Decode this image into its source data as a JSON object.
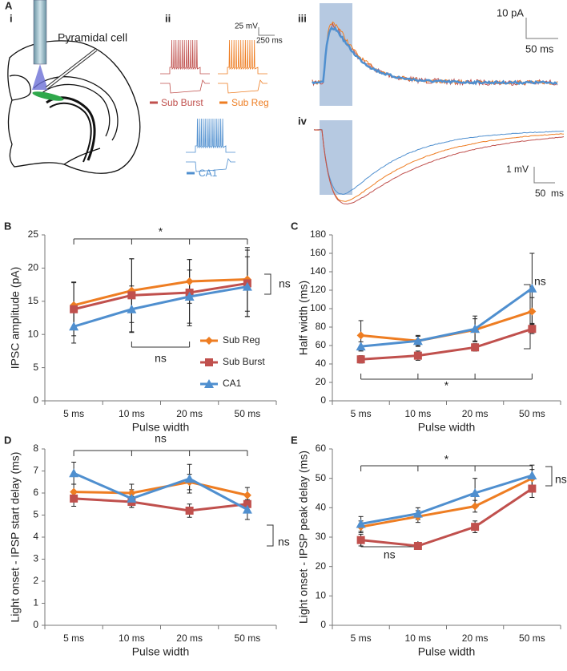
{
  "panel_a": {
    "label": "A",
    "sub_labels": [
      "i",
      "ii",
      "iii",
      "iv"
    ],
    "cell_label": "Pyramidal cell",
    "scale_ii": [
      "25 mV",
      "250 ms"
    ],
    "traces_ii": [
      "Sub Burst",
      "Sub Reg",
      "CA1"
    ],
    "scale_iii": [
      "10 pA",
      "50 ms"
    ],
    "scale_iv": [
      "1 mV",
      "50  ms"
    ]
  },
  "chart_data": [
    {
      "type": "line",
      "label": "B",
      "ylabel": "IPSC amplitude (pA)",
      "xlabel": "Pulse width",
      "categories": [
        "5 ms",
        "10 ms",
        "20 ms",
        "50 ms"
      ],
      "series": [
        {
          "name": "Sub Reg",
          "color": "#ee7d22",
          "marker": "diamond",
          "values": [
            14.4,
            16.6,
            18.0,
            18.3
          ],
          "errors": [
            3.5,
            4.8,
            3.3,
            4.8
          ]
        },
        {
          "name": "Sub Burst",
          "color": "#c0504d",
          "marker": "square",
          "values": [
            13.8,
            15.9,
            16.3,
            17.7
          ],
          "errors": [
            4.0,
            5.5,
            5.0,
            5.0
          ]
        },
        {
          "name": "CA1",
          "color": "#4f8fcf",
          "marker": "triangle",
          "values": [
            11.2,
            13.8,
            15.7,
            17.2
          ],
          "errors": [
            2.5,
            3.5,
            4.0,
            4.5
          ]
        }
      ],
      "ylim": [
        0,
        25
      ],
      "yticks": [
        0,
        5,
        10,
        15,
        20,
        25
      ],
      "legend": "lower right",
      "annotations": [
        "*",
        "ns",
        "ns"
      ]
    },
    {
      "type": "line",
      "label": "C",
      "ylabel": "Half width (ms)",
      "xlabel": "Pulse width",
      "categories": [
        "5 ms",
        "10 ms",
        "20 ms",
        "50 ms"
      ],
      "series": [
        {
          "color": "#ee7d22",
          "marker": "diamond",
          "values": [
            71,
            65,
            77,
            97
          ],
          "errors": [
            16,
            5,
            12,
            15
          ]
        },
        {
          "color": "#c0504d",
          "marker": "square",
          "values": [
            45,
            49,
            58,
            78
          ],
          "errors": [
            4,
            5,
            4,
            5
          ]
        },
        {
          "color": "#4f8fcf",
          "marker": "triangle",
          "values": [
            59,
            65,
            78,
            122
          ],
          "errors": [
            5,
            6,
            14,
            38
          ]
        }
      ],
      "ylim": [
        0,
        180
      ],
      "yticks": [
        0,
        20,
        40,
        60,
        80,
        100,
        120,
        140,
        160,
        180
      ],
      "annotations": [
        "*",
        "ns"
      ]
    },
    {
      "type": "line",
      "label": "D",
      "ylabel": "Light onset - IPSP start delay (ms)",
      "xlabel": "Pulse width",
      "categories": [
        "5 ms",
        "10 ms",
        "20 ms",
        "50 ms"
      ],
      "series": [
        {
          "color": "#ee7d22",
          "marker": "diamond",
          "values": [
            6.05,
            6.0,
            6.5,
            5.9
          ],
          "errors": [
            0.35,
            0.4,
            0.35,
            0.35
          ]
        },
        {
          "color": "#c0504d",
          "marker": "square",
          "values": [
            5.75,
            5.6,
            5.2,
            5.5
          ],
          "errors": [
            0.35,
            0.25,
            0.3,
            0.4
          ]
        },
        {
          "color": "#4f8fcf",
          "marker": "triangle",
          "values": [
            6.9,
            5.75,
            6.65,
            5.25
          ],
          "errors": [
            0.5,
            0.4,
            0.65,
            0.45
          ]
        }
      ],
      "ylim": [
        0,
        8
      ],
      "yticks": [
        0,
        1,
        2,
        3,
        4,
        5,
        6,
        7,
        8
      ],
      "annotations": [
        "ns",
        "ns"
      ]
    },
    {
      "type": "line",
      "label": "E",
      "ylabel": "Light onset - IPSP peak delay (ms)",
      "xlabel": "Pulse width",
      "categories": [
        "5 ms",
        "10 ms",
        "20 ms",
        "50 ms"
      ],
      "series": [
        {
          "color": "#ee7d22",
          "marker": "diamond",
          "values": [
            33.5,
            37,
            40.5,
            50
          ],
          "errors": [
            2,
            2,
            2,
            3
          ]
        },
        {
          "color": "#c0504d",
          "marker": "square",
          "values": [
            29,
            27,
            33.5,
            46.5
          ],
          "errors": [
            2,
            1,
            2,
            3
          ]
        },
        {
          "color": "#4f8fcf",
          "marker": "triangle",
          "values": [
            34.5,
            38,
            45,
            51
          ],
          "errors": [
            2.5,
            2,
            5,
            3.5
          ]
        }
      ],
      "ylim": [
        0,
        60
      ],
      "yticks": [
        0,
        10,
        20,
        30,
        40,
        50,
        60
      ],
      "annotations": [
        "*",
        "ns",
        "ns"
      ]
    }
  ]
}
